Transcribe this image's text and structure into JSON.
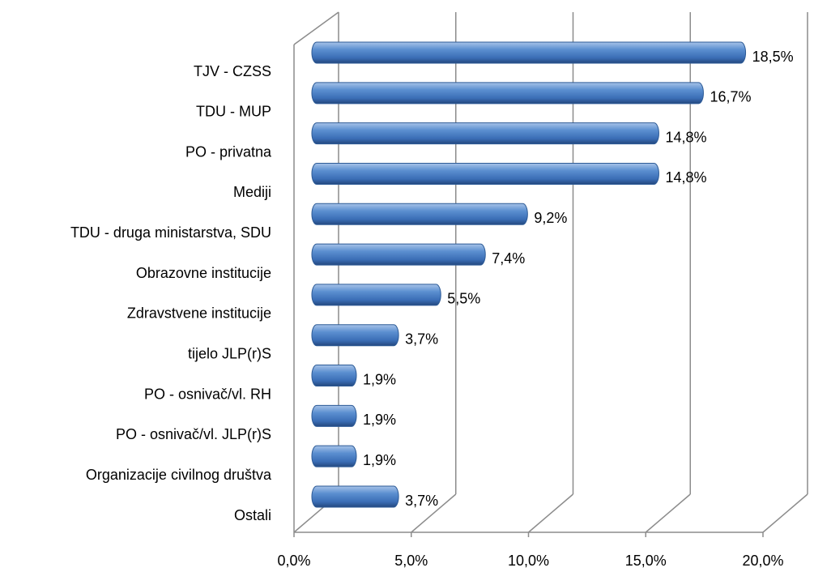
{
  "chart_data": {
    "type": "bar",
    "orientation": "horizontal",
    "style": "3d-cylinder",
    "categories": [
      "TJV - CZSS",
      "TDU - MUP",
      "PO - privatna",
      "Mediji",
      "TDU - druga ministarstva, SDU",
      "Obrazovne institucije",
      "Zdravstvene institucije",
      "tijelo JLP(r)S",
      "PO - osnivač/vl. RH",
      "PO - osnivač/vl. JLP(r)S",
      "Organizacije civilnog društva",
      "Ostali"
    ],
    "values": [
      18.5,
      16.7,
      14.8,
      14.8,
      9.2,
      7.4,
      5.5,
      3.7,
      1.9,
      1.9,
      1.9,
      3.7
    ],
    "value_labels": [
      "18,5%",
      "16,7%",
      "14,8%",
      "14,8%",
      "9,2%",
      "7,4%",
      "5,5%",
      "3,7%",
      "1,9%",
      "1,9%",
      "1,9%",
      "3,7%"
    ],
    "color": "#4f81bd",
    "xlim": [
      0,
      20
    ],
    "xticks": [
      {
        "value": 0,
        "label": "0,0%"
      },
      {
        "value": 5,
        "label": "5,0%"
      },
      {
        "value": 10,
        "label": "10,0%"
      },
      {
        "value": 15,
        "label": "15,0%"
      },
      {
        "value": 20,
        "label": "20,0%"
      }
    ],
    "grid": true
  }
}
